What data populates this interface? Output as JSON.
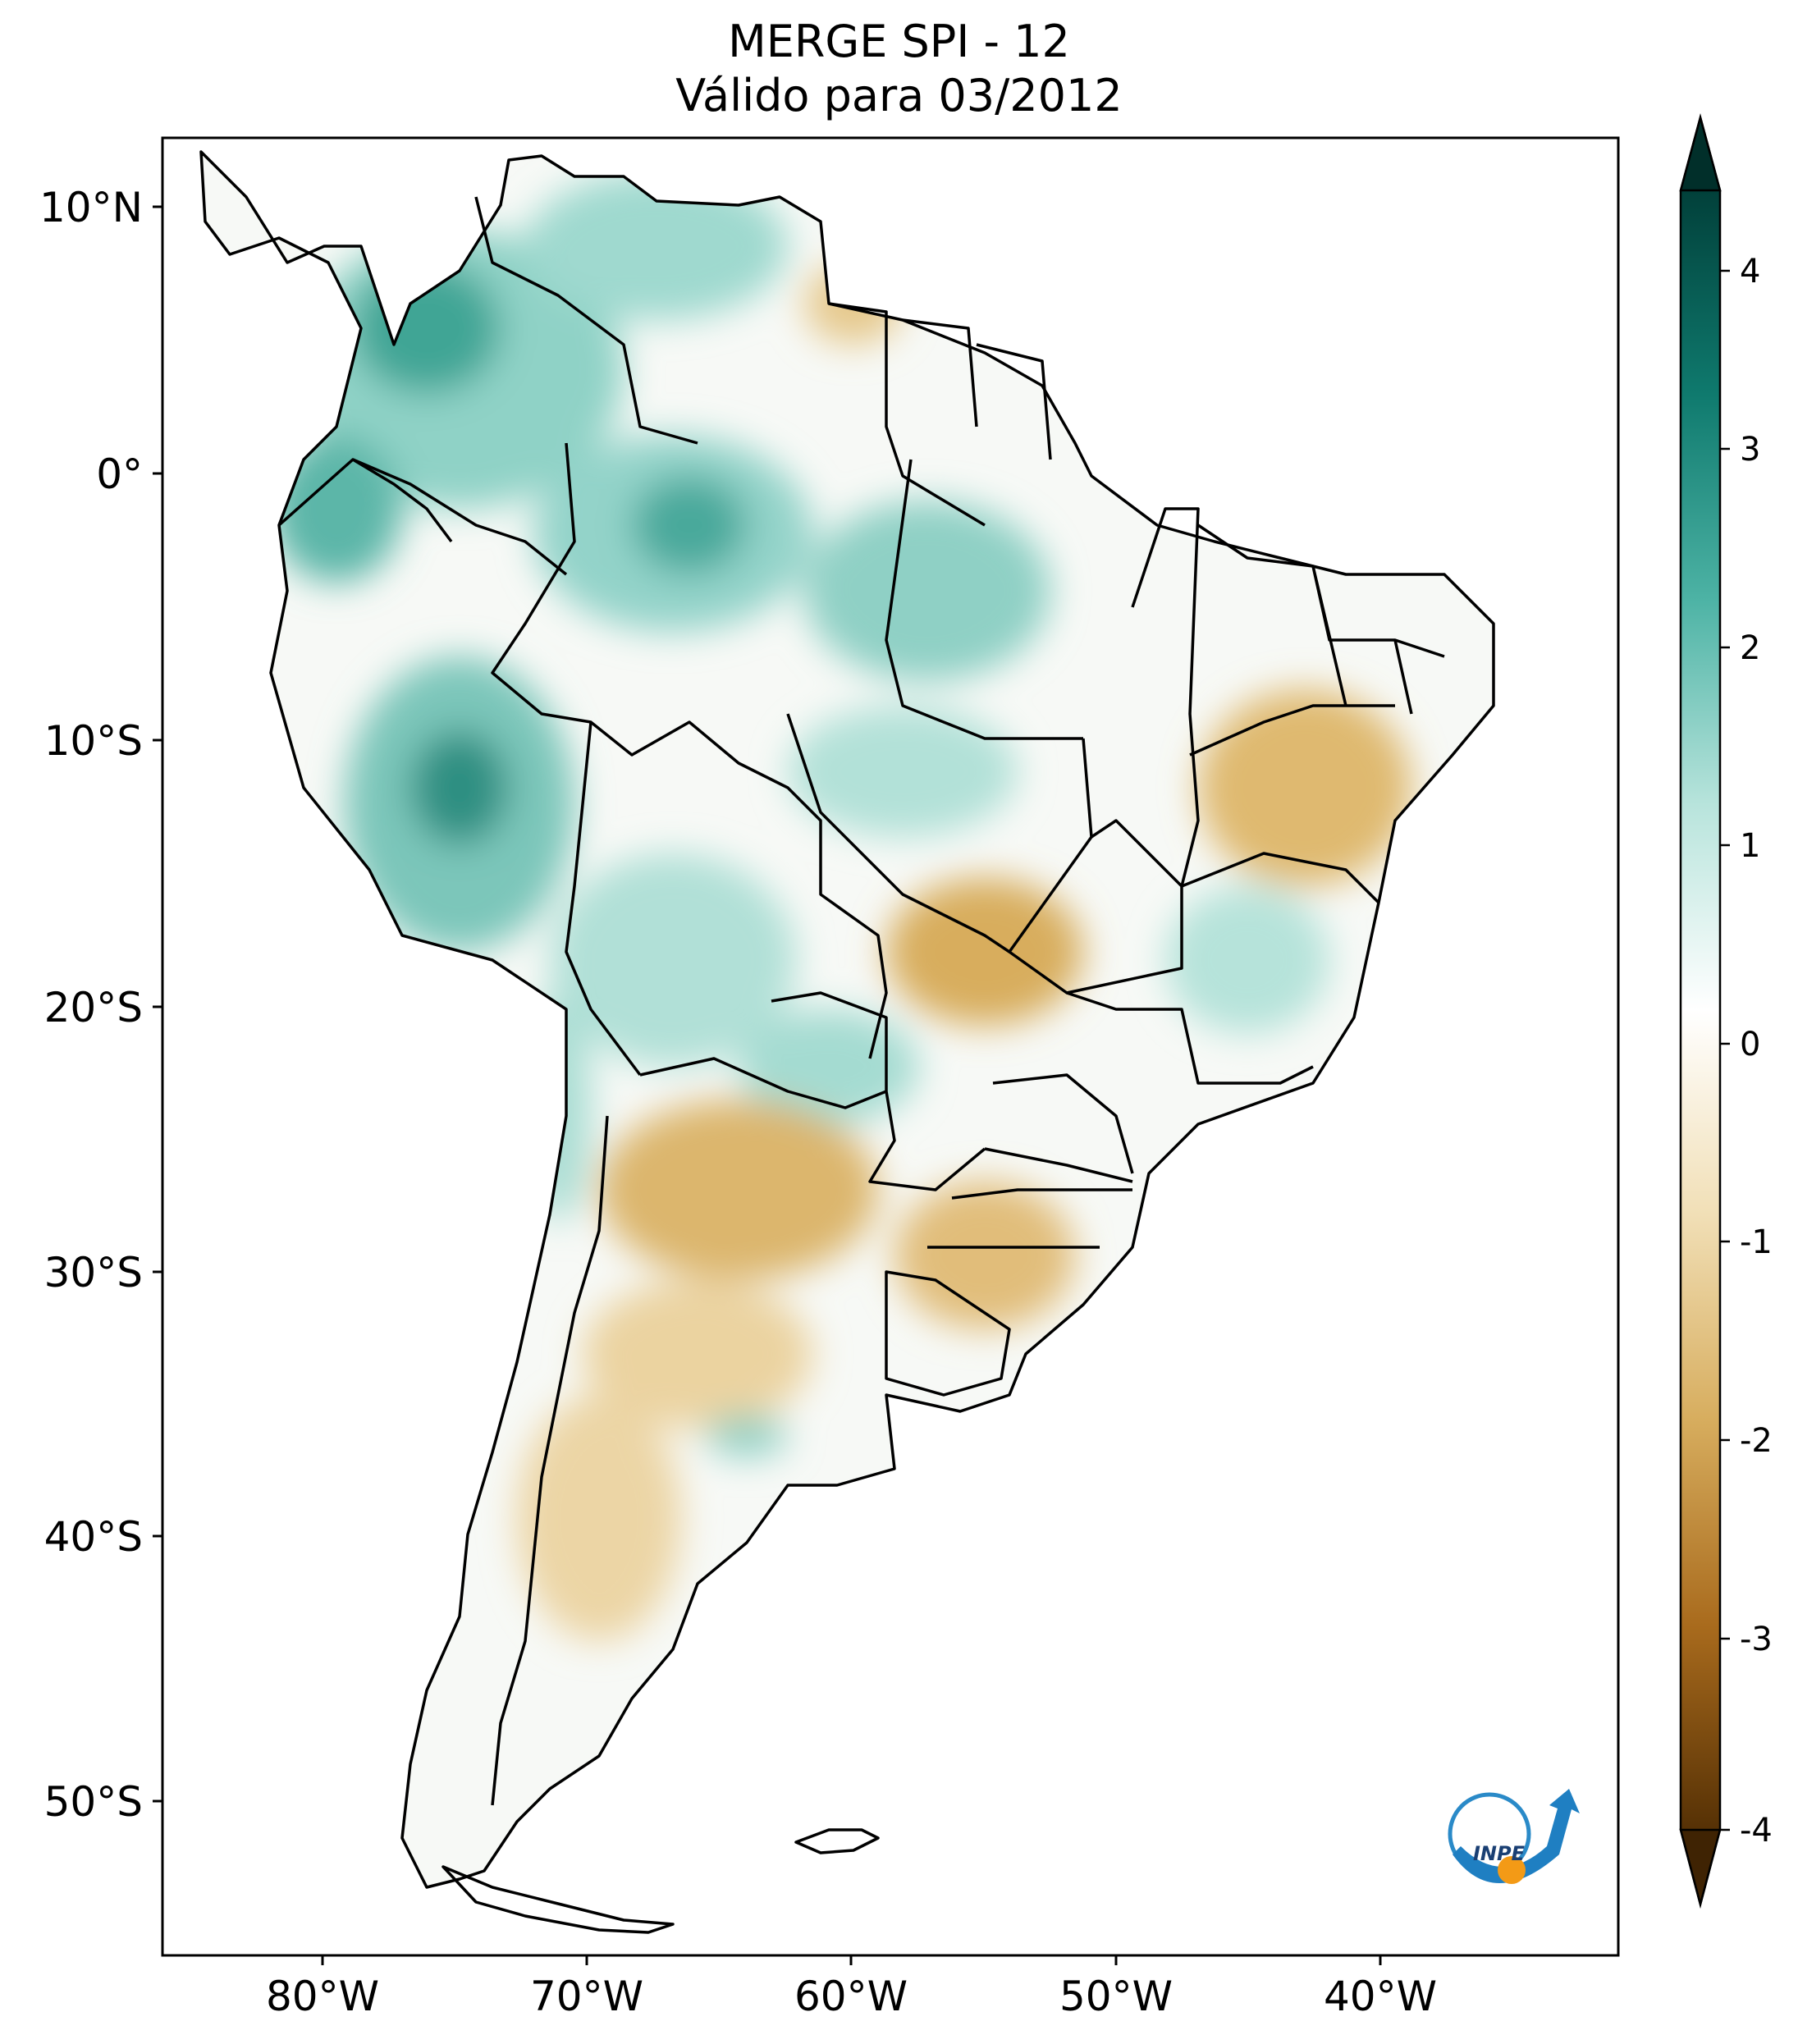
{
  "title": {
    "line1": "MERGE   SPI - 12",
    "line2": "Válido para 03/2012"
  },
  "map": {
    "lat_labels": [
      "10°N",
      "0°",
      "10°S",
      "20°S",
      "30°S",
      "40°S",
      "50°S"
    ],
    "lat_values": [
      10,
      0,
      -10,
      -20,
      -30,
      -40,
      -50
    ],
    "lon_labels": [
      "80°W",
      "70°W",
      "60°W",
      "50°W",
      "40°W"
    ],
    "lon_values": [
      -80,
      -70,
      -60,
      -50,
      -40
    ],
    "extent": {
      "lon_min": -85,
      "lon_max": -30,
      "lat_min": -56,
      "lat_max": 13
    }
  },
  "colorbar": {
    "labels": [
      "4",
      "3",
      "2",
      "1",
      "0",
      "-1",
      "-2",
      "-3",
      "-4"
    ],
    "values": [
      4,
      3,
      2,
      1,
      0,
      -1,
      -2,
      -3,
      -4
    ],
    "colors": {
      "wet_max": "#01403a",
      "wet_3": "#0f7a6e",
      "wet_2": "#4db3a5",
      "wet_1": "#b8e4dc",
      "neutral": "#ffffff",
      "dry_1": "#f1dfb6",
      "dry_2": "#d7ad5e",
      "dry_3": "#a96b1d",
      "dry_max": "#563105"
    }
  },
  "logo": {
    "text": "INPE"
  }
}
